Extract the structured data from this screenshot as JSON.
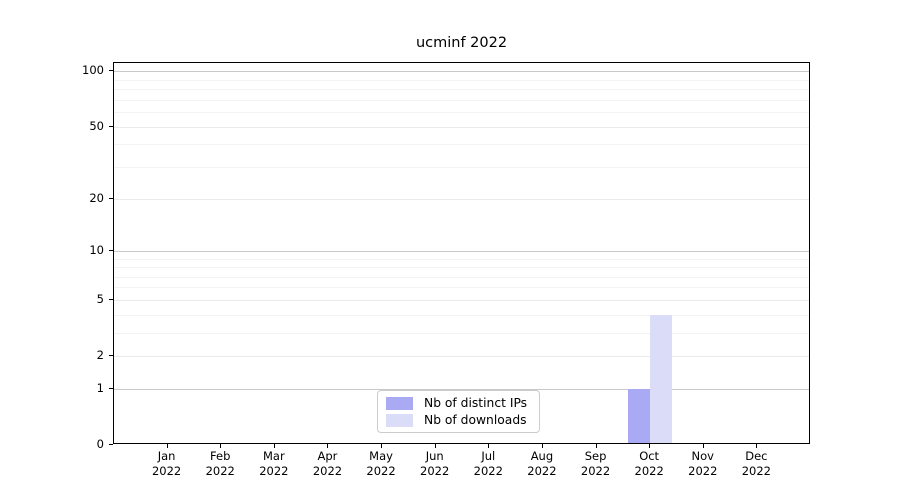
{
  "chart_data": {
    "type": "bar",
    "title": "ucminf 2022",
    "categories": [
      "Jan",
      "Feb",
      "Mar",
      "Apr",
      "May",
      "Jun",
      "Jul",
      "Aug",
      "Sep",
      "Oct",
      "Nov",
      "Dec"
    ],
    "category_year": "2022",
    "series": [
      {
        "name": "Nb of distinct IPs",
        "color": "#a9aaf3",
        "values": [
          0,
          0,
          0,
          0,
          0,
          0,
          0,
          0,
          0,
          1,
          0,
          0
        ]
      },
      {
        "name": "Nb of downloads",
        "color": "#dbdcf7",
        "values": [
          0,
          0,
          0,
          0,
          0,
          0,
          0,
          0,
          0,
          4,
          0,
          0
        ]
      }
    ],
    "yscale": "log1p",
    "ylim": [
      0,
      111
    ],
    "yticks": [
      0,
      1,
      2,
      5,
      10,
      20,
      50,
      100
    ],
    "emphasized_gridlines": [
      1,
      10,
      100
    ],
    "minor_gridlines": [
      3,
      4,
      6,
      7,
      8,
      9,
      30,
      40,
      60,
      70,
      80,
      90
    ],
    "grid": "horizontal",
    "legend_position": "bottom-center-inside",
    "axis_color": "#000000",
    "background_color": "#ffffff"
  }
}
